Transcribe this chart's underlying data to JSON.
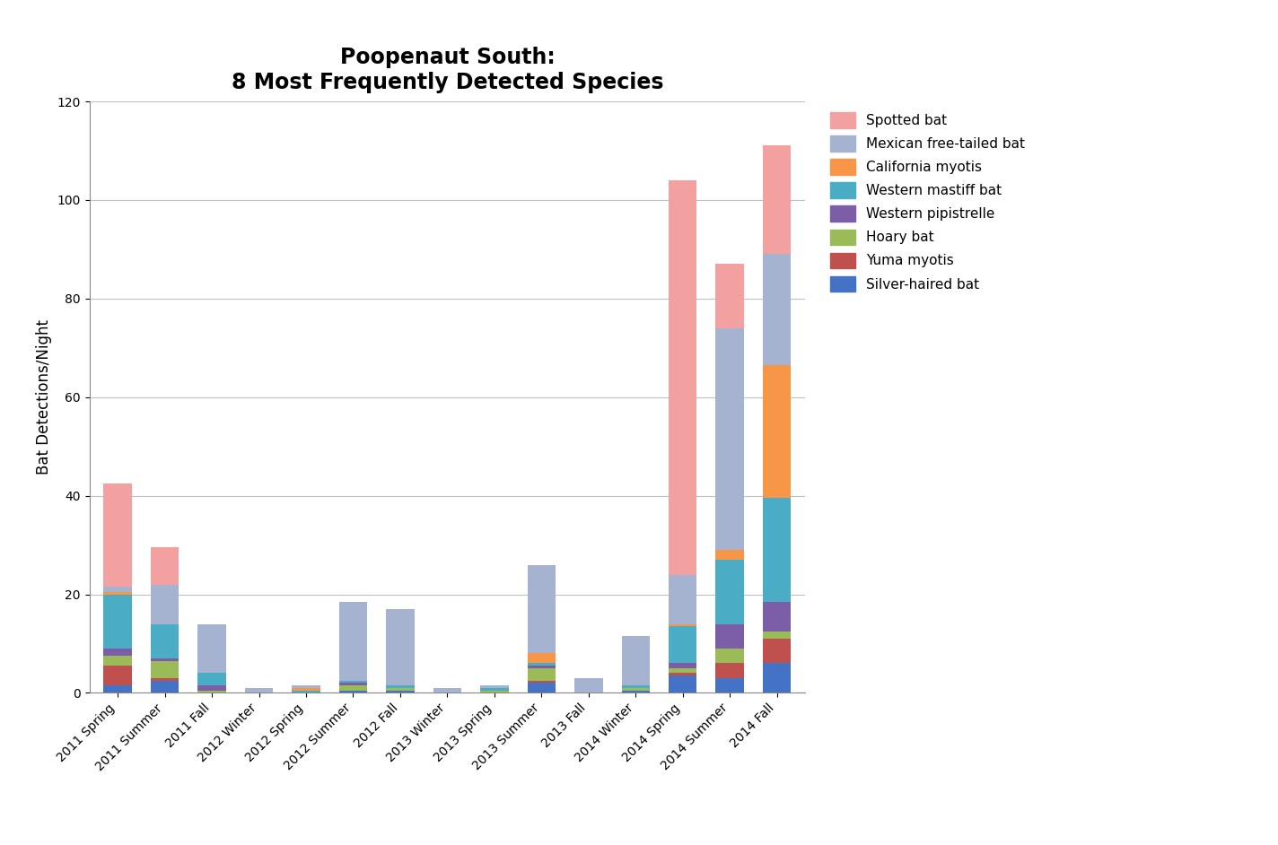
{
  "categories": [
    "2011 Spring",
    "2011 Summer",
    "2011 Fall",
    "2012 Winter",
    "2012 Spring",
    "2012 Summer",
    "2012 Fall",
    "2013 Winter",
    "2013 Spring",
    "2013 Summer",
    "2013 Fall",
    "2014 Winter",
    "2014 Spring",
    "2014 Summer",
    "2014 Fall"
  ],
  "species": [
    "Silver-haired bat",
    "Yuma myotis",
    "Hoary bat",
    "Western pipistrelle",
    "Western mastiff bat",
    "California myotis",
    "Mexican free-tailed bat",
    "Spotted bat"
  ],
  "colors": [
    "#4472C4",
    "#C0504D",
    "#9BBB59",
    "#7B5EA7",
    "#4BACC6",
    "#F79646",
    "#A5B3D0",
    "#F2A0A0"
  ],
  "data": {
    "Silver-haired bat": [
      1.5,
      2.5,
      0.0,
      0.0,
      0.0,
      0.5,
      0.5,
      0.0,
      0.0,
      2.0,
      0.0,
      0.5,
      3.5,
      3.0,
      6.0
    ],
    "Yuma myotis": [
      4.0,
      0.5,
      0.0,
      0.0,
      0.0,
      0.0,
      0.0,
      0.0,
      0.0,
      0.5,
      0.0,
      0.0,
      0.5,
      3.0,
      5.0
    ],
    "Hoary bat": [
      2.0,
      3.5,
      0.5,
      0.0,
      0.0,
      1.0,
      0.5,
      0.0,
      0.5,
      2.5,
      0.0,
      0.5,
      1.0,
      3.0,
      1.5
    ],
    "Western pipistrelle": [
      1.5,
      0.5,
      1.0,
      0.0,
      0.0,
      0.5,
      0.0,
      0.0,
      0.0,
      0.5,
      0.0,
      0.0,
      1.0,
      5.0,
      6.0
    ],
    "Western mastiff bat": [
      11.0,
      7.0,
      2.5,
      0.0,
      0.5,
      0.5,
      0.5,
      0.0,
      0.5,
      0.5,
      0.0,
      0.5,
      7.5,
      13.0,
      21.0
    ],
    "California myotis": [
      0.5,
      0.0,
      0.0,
      0.0,
      0.5,
      0.0,
      0.0,
      0.0,
      0.0,
      2.0,
      0.0,
      0.0,
      0.5,
      2.0,
      27.0
    ],
    "Mexican free-tailed bat": [
      1.0,
      8.0,
      10.0,
      1.0,
      0.5,
      16.0,
      15.5,
      1.0,
      0.5,
      18.0,
      3.0,
      10.0,
      10.0,
      45.0,
      22.5
    ],
    "Spotted bat": [
      21.0,
      7.5,
      0.0,
      0.0,
      0.0,
      0.0,
      0.0,
      0.0,
      0.0,
      0.0,
      0.0,
      0.0,
      80.0,
      13.0,
      22.0
    ]
  },
  "ylabel": "Bat Detections/Night",
  "title_line1": "Poopenaut South:",
  "title_line2": "8 Most Frequently Detected Species",
  "ylim": [
    0,
    120
  ],
  "yticks": [
    0,
    20,
    40,
    60,
    80,
    100,
    120
  ],
  "background_color": "#FFFFFF",
  "grid_color": "#C0C0C0",
  "title_fontsize": 17,
  "ylabel_fontsize": 12,
  "tick_fontsize": 10,
  "legend_fontsize": 11,
  "bar_width": 0.6
}
